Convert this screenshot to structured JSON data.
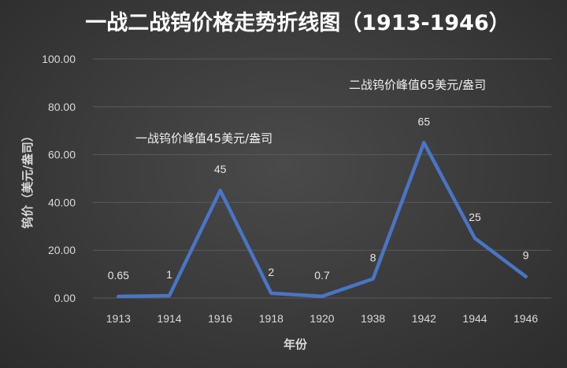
{
  "chart_data": {
    "type": "line",
    "title": "一战二战钨价格走势折线图（1913-1946）",
    "xlabel": "年份",
    "ylabel": "钨价（美元/盎司）",
    "categories": [
      "1913",
      "1914",
      "1916",
      "1918",
      "1920",
      "1938",
      "1942",
      "1944",
      "1946"
    ],
    "series": [
      {
        "values": [
          0.65,
          1,
          45,
          2,
          0.7,
          8,
          65,
          25,
          9
        ],
        "labels": [
          "0.65",
          "1",
          "45",
          "2",
          "0.7",
          "8",
          "65",
          "25",
          "9"
        ],
        "color": "#4a74c4"
      }
    ],
    "ylim": [
      0,
      100
    ],
    "yticks": [
      "0.00",
      "20.00",
      "40.00",
      "60.00",
      "80.00",
      "100.00"
    ],
    "grid": true,
    "annotations": [
      {
        "text": "一战钨价峰值45美元/盎司"
      },
      {
        "text": "二战钨价峰值65美元/盎司"
      }
    ]
  }
}
